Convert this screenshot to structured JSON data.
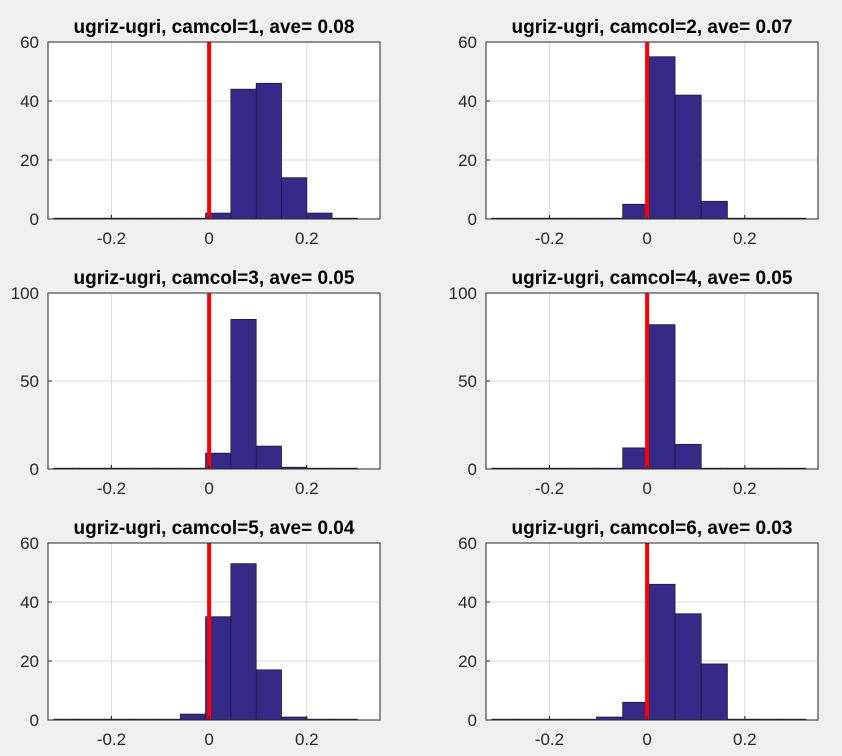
{
  "colors": {
    "figure_bg": "#f0f0f0",
    "axes_bg": "#ffffff",
    "bar_fill": "#352a87",
    "bar_edge": "#1a1a3a",
    "zero_line": "#ff0000",
    "grid": "#d9d9d9",
    "axis": "#262626"
  },
  "chart_data": [
    {
      "type": "bar",
      "title": "ugriz-ugri, camcol=1, ave= 0.08",
      "xlim": [
        -0.33,
        0.35
      ],
      "ylim": [
        0,
        60
      ],
      "xticks": [
        -0.2,
        0,
        0.2
      ],
      "xtick_labels": [
        "-0.2",
        "0",
        "0.2"
      ],
      "yticks": [
        0,
        20,
        40,
        60
      ],
      "ytick_labels": [
        "0",
        "20",
        "40",
        "60"
      ],
      "grid": true,
      "reference_line_x": 0,
      "bin_edges": [
        -0.318,
        -0.2662,
        -0.2144,
        -0.1626,
        -0.1108,
        -0.059,
        -0.0072,
        0.0446,
        0.0964,
        0.1482,
        0.2,
        0.2518,
        0.3036
      ],
      "values": [
        0,
        0,
        0,
        0,
        0,
        0,
        2,
        44,
        46,
        14,
        2,
        0
      ]
    },
    {
      "type": "bar",
      "title": "ugriz-ugri, camcol=2, ave= 0.07",
      "xlim": [
        -0.33,
        0.35
      ],
      "ylim": [
        0,
        60
      ],
      "xticks": [
        -0.2,
        0,
        0.2
      ],
      "xtick_labels": [
        "-0.2",
        "0",
        "0.2"
      ],
      "yticks": [
        0,
        20,
        40,
        60
      ],
      "ytick_labels": [
        "0",
        "20",
        "40",
        "60"
      ],
      "grid": true,
      "reference_line_x": 0,
      "bin_edges": [
        -0.318,
        -0.2644,
        -0.2108,
        -0.1572,
        -0.1036,
        -0.05,
        0.0036,
        0.0572,
        0.1108,
        0.1644,
        0.218,
        0.2716,
        0.3252
      ],
      "values": [
        0,
        0,
        0,
        0,
        0,
        5,
        55,
        42,
        6,
        0,
        0,
        0
      ]
    },
    {
      "type": "bar",
      "title": "ugriz-ugri, camcol=3, ave= 0.05",
      "xlim": [
        -0.33,
        0.35
      ],
      "ylim": [
        0,
        100
      ],
      "xticks": [
        -0.2,
        0,
        0.2
      ],
      "xtick_labels": [
        "-0.2",
        "0",
        "0.2"
      ],
      "yticks": [
        0,
        50,
        100
      ],
      "ytick_labels": [
        "0",
        "50",
        "100"
      ],
      "grid": true,
      "reference_line_x": 0,
      "bin_edges": [
        -0.318,
        -0.2662,
        -0.2144,
        -0.1626,
        -0.1108,
        -0.059,
        -0.0072,
        0.0446,
        0.0964,
        0.1482,
        0.2,
        0.2518,
        0.3036
      ],
      "values": [
        0,
        0,
        0,
        0,
        0,
        0,
        9,
        85,
        13,
        1,
        0,
        0
      ]
    },
    {
      "type": "bar",
      "title": "ugriz-ugri, camcol=4, ave= 0.05",
      "xlim": [
        -0.33,
        0.35
      ],
      "ylim": [
        0,
        100
      ],
      "xticks": [
        -0.2,
        0,
        0.2
      ],
      "xtick_labels": [
        "-0.2",
        "0",
        "0.2"
      ],
      "yticks": [
        0,
        50,
        100
      ],
      "ytick_labels": [
        "0",
        "50",
        "100"
      ],
      "grid": true,
      "reference_line_x": 0,
      "bin_edges": [
        -0.318,
        -0.2644,
        -0.2108,
        -0.1572,
        -0.1036,
        -0.05,
        0.0036,
        0.0572,
        0.1108,
        0.1644,
        0.218,
        0.2716,
        0.3252
      ],
      "values": [
        0,
        0,
        0,
        0,
        0,
        12,
        82,
        14,
        0,
        0,
        0,
        0
      ]
    },
    {
      "type": "bar",
      "title": "ugriz-ugri, camcol=5, ave= 0.04",
      "xlim": [
        -0.33,
        0.35
      ],
      "ylim": [
        0,
        60
      ],
      "xticks": [
        -0.2,
        0,
        0.2
      ],
      "xtick_labels": [
        "-0.2",
        "0",
        "0.2"
      ],
      "yticks": [
        0,
        20,
        40,
        60
      ],
      "ytick_labels": [
        "0",
        "20",
        "40",
        "60"
      ],
      "grid": true,
      "reference_line_x": 0,
      "bin_edges": [
        -0.318,
        -0.2662,
        -0.2144,
        -0.1626,
        -0.1108,
        -0.059,
        -0.0072,
        0.0446,
        0.0964,
        0.1482,
        0.2,
        0.2518,
        0.3036
      ],
      "values": [
        0,
        0,
        0,
        0,
        0,
        2,
        35,
        53,
        17,
        1,
        0,
        0
      ]
    },
    {
      "type": "bar",
      "title": "ugriz-ugri, camcol=6, ave= 0.03",
      "xlim": [
        -0.33,
        0.35
      ],
      "ylim": [
        0,
        60
      ],
      "xticks": [
        -0.2,
        0,
        0.2
      ],
      "xtick_labels": [
        "-0.2",
        "0",
        "0.2"
      ],
      "yticks": [
        0,
        20,
        40,
        60
      ],
      "ytick_labels": [
        "0",
        "20",
        "40",
        "60"
      ],
      "grid": true,
      "reference_line_x": 0,
      "bin_edges": [
        -0.318,
        -0.2644,
        -0.2108,
        -0.1572,
        -0.1036,
        -0.05,
        0.0036,
        0.0572,
        0.1108,
        0.1644,
        0.218,
        0.2716,
        0.3252
      ],
      "values": [
        0,
        0,
        0,
        0,
        1,
        6,
        46,
        36,
        19,
        0,
        0,
        0
      ]
    }
  ]
}
